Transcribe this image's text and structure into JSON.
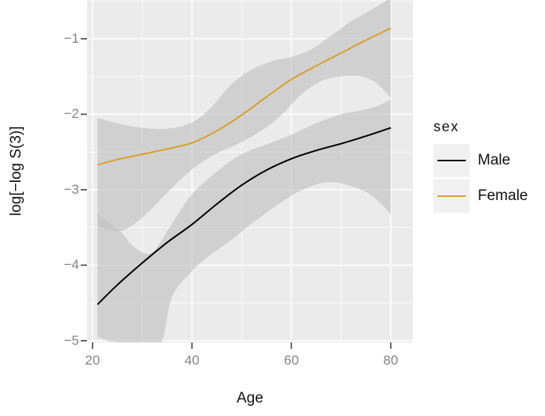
{
  "axes": {
    "x_label": "Age",
    "y_label": "log[−log S(3)]",
    "x_tick_labels": [
      "20",
      "40",
      "60",
      "80"
    ],
    "y_tick_labels": [
      "−1",
      "−2",
      "−3",
      "−4",
      "−5"
    ]
  },
  "legend": {
    "title": "sex",
    "items": [
      {
        "label": "Male",
        "color": "#161616"
      },
      {
        "label": "Female",
        "color": "#DCA228"
      }
    ]
  },
  "colors": {
    "panel_background": "#EBEBEB",
    "grid_line": "#FFFFFF",
    "ribbon_fill": "#C0C0C0",
    "ribbon_opacity": 0.62,
    "tick_mark": "#4D4D4D",
    "tick_text": "#858585",
    "male_line": "#000000",
    "female_line": "#D9A02B",
    "legend_key_background": "#F1F1F1"
  },
  "chart_data": {
    "type": "line",
    "title": "",
    "xlabel": "Age",
    "ylabel": "log[−log S(3)]",
    "xlim": [
      18.9,
      84.3
    ],
    "ylim": [
      -5.02,
      -0.49
    ],
    "x_ticks": [
      20,
      40,
      60,
      80
    ],
    "y_ticks": [
      -1,
      -2,
      -3,
      -4,
      -5
    ],
    "x_minor_ticks": [
      30,
      50,
      70
    ],
    "y_minor_ticks": [
      -0.5,
      -1.5,
      -2.5,
      -3.5,
      -4.5
    ],
    "grid": true,
    "legend_position": "right",
    "series": [
      {
        "name": "Male",
        "color": "#000000",
        "x": [
          21,
          25,
          30,
          35,
          40,
          45,
          50,
          55,
          60,
          65,
          70,
          75,
          80
        ],
        "y": [
          -4.52,
          -4.26,
          -3.97,
          -3.7,
          -3.46,
          -3.19,
          -2.94,
          -2.74,
          -2.59,
          -2.48,
          -2.39,
          -2.29,
          -2.18
        ],
        "ci_upper": {
          "x": [
            21,
            25.5,
            28,
            31,
            33,
            36,
            40,
            45,
            50,
            55,
            60,
            65,
            70,
            74,
            77,
            80
          ],
          "y": [
            -3.32,
            -3.55,
            -3.74,
            -3.85,
            -3.76,
            -3.45,
            -3.06,
            -2.76,
            -2.53,
            -2.4,
            -2.27,
            -2.12,
            -2.0,
            -1.95,
            -1.9,
            -1.8
          ]
        },
        "ci_lower": {
          "x": [
            21,
            23,
            25.7,
            29.5,
            33.7,
            36,
            40,
            43,
            48,
            53,
            60,
            65,
            68,
            71,
            75,
            78,
            80
          ],
          "y": [
            -4.95,
            -5.0,
            -5.06,
            -5.35,
            -5.06,
            -4.42,
            -4.08,
            -3.9,
            -3.66,
            -3.4,
            -3.08,
            -2.93,
            -2.9,
            -2.93,
            -3.03,
            -3.18,
            -3.33
          ]
        }
      },
      {
        "name": "Female",
        "color": "#D9A02B",
        "x": [
          21,
          25,
          30,
          35,
          40,
          45,
          50,
          55,
          60,
          65,
          70,
          75,
          80
        ],
        "y": [
          -2.67,
          -2.6,
          -2.53,
          -2.46,
          -2.38,
          -2.22,
          -2.01,
          -1.77,
          -1.54,
          -1.36,
          -1.19,
          -1.02,
          -0.86
        ],
        "ci_upper": {
          "x": [
            21,
            25,
            30,
            35,
            40,
            44,
            48,
            52,
            56,
            60,
            64,
            68,
            72,
            76,
            80
          ],
          "y": [
            -2.05,
            -2.12,
            -2.18,
            -2.19,
            -2.11,
            -1.9,
            -1.6,
            -1.41,
            -1.3,
            -1.24,
            -1.14,
            -0.96,
            -0.77,
            -0.62,
            -0.46
          ]
        },
        "ci_lower": {
          "x": [
            21,
            23,
            25.5,
            28,
            31,
            35,
            40,
            45,
            50,
            55,
            58,
            62,
            66,
            70,
            74,
            77,
            80
          ],
          "y": [
            -3.48,
            -3.52,
            -3.55,
            -3.47,
            -3.31,
            -3.04,
            -2.73,
            -2.52,
            -2.37,
            -2.17,
            -2.01,
            -1.74,
            -1.56,
            -1.5,
            -1.5,
            -1.58,
            -1.78
          ]
        }
      }
    ]
  }
}
